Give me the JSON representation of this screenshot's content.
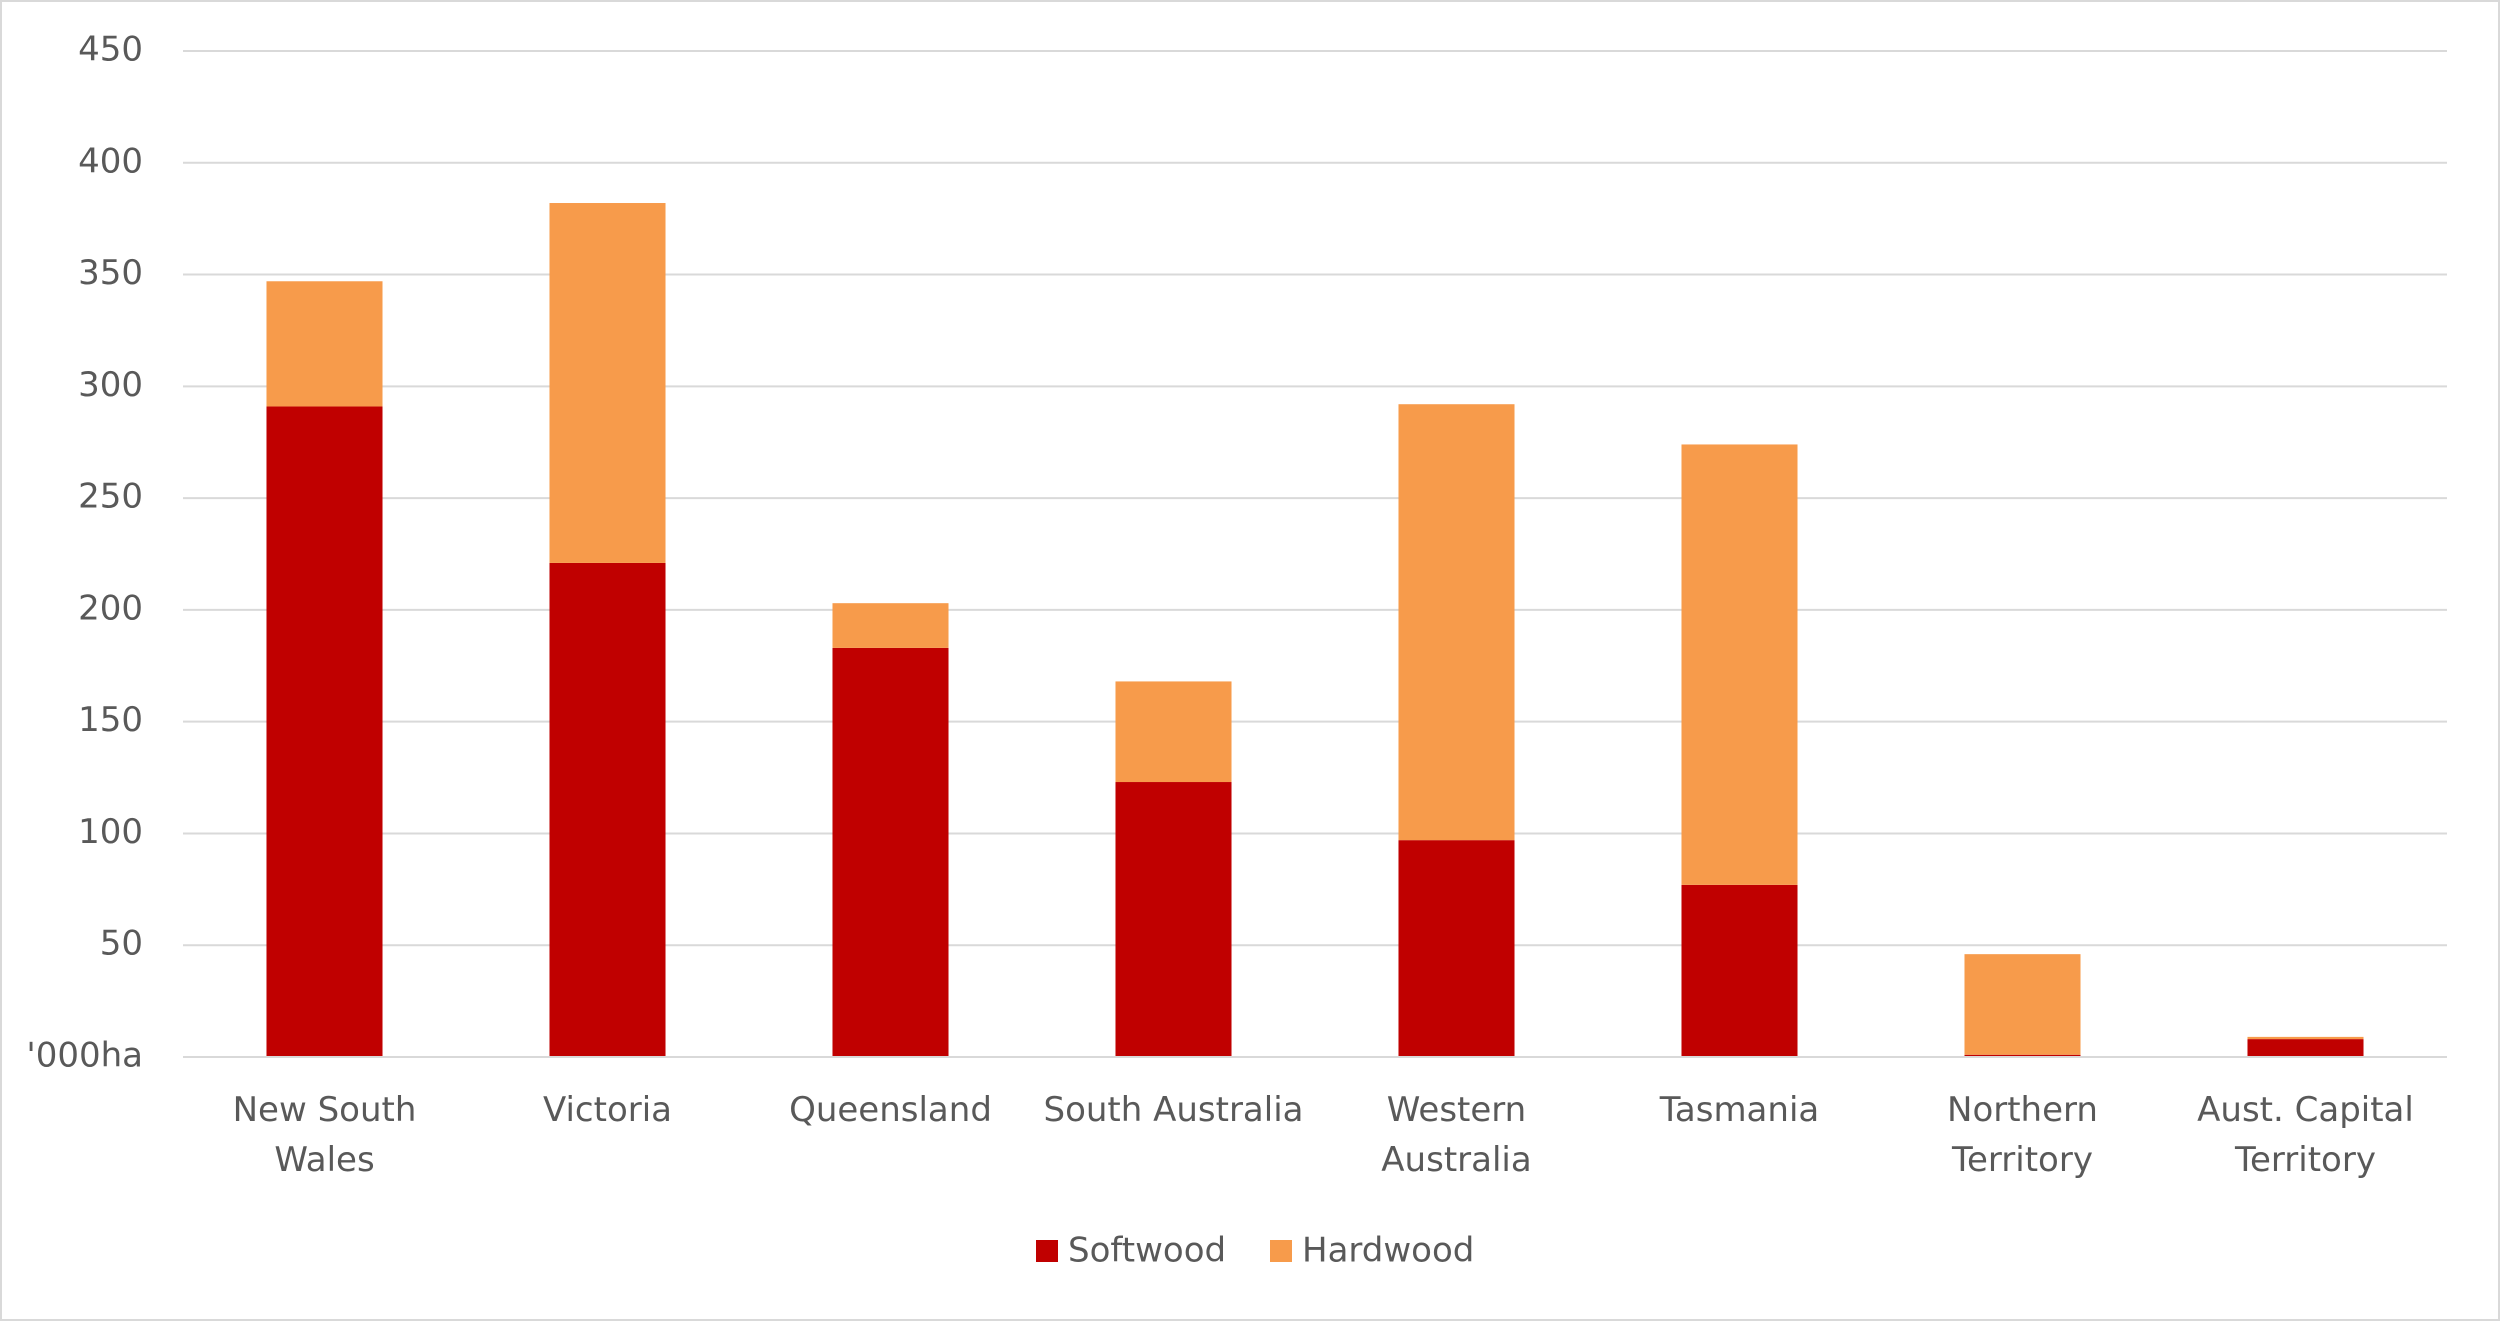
{
  "chart_data": {
    "type": "stacked_bar",
    "categories": [
      "New South Wales",
      "Victoria",
      "Queensland",
      "South Australia",
      "Western Australia",
      "Tasmania",
      "Northern Territory",
      "Aust. Capital Territory"
    ],
    "series": [
      {
        "name": "Softwood",
        "color": "#c00000",
        "values": [
          291,
          221,
          183,
          123,
          97,
          77,
          1,
          8
        ]
      },
      {
        "name": "Hardwood",
        "color": "#f79b4b",
        "values": [
          56,
          161,
          20,
          45,
          195,
          197,
          45,
          1
        ]
      }
    ],
    "ylim": [
      0,
      450
    ],
    "yticks": [
      {
        "value": 0,
        "label": "'000ha"
      },
      50,
      100,
      150,
      200,
      250,
      300,
      350,
      400,
      450
    ],
    "grid": true,
    "legend": "bottom"
  }
}
